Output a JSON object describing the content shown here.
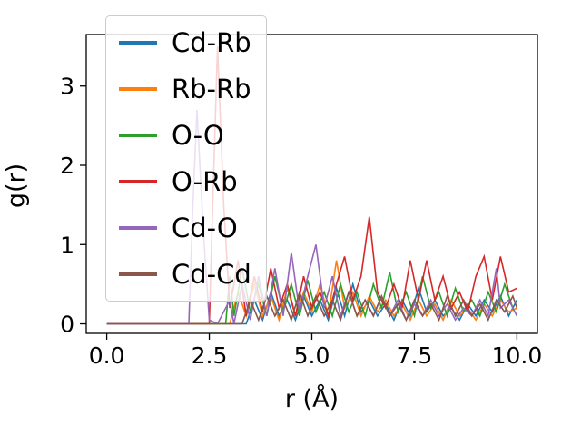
{
  "chart_data": {
    "type": "line",
    "title": "",
    "xlabel": "r (Å)",
    "ylabel": "g(r)",
    "xlim": [
      -0.5,
      10.5
    ],
    "ylim": [
      -0.12,
      3.65
    ],
    "grid": false,
    "legend_position": "upper left",
    "x_ticks": {
      "values": [
        0,
        2.5,
        5,
        7.5,
        10
      ],
      "labels": [
        "0.0",
        "2.5",
        "5.0",
        "7.5",
        "10.0"
      ]
    },
    "y_ticks": {
      "values": [
        0,
        1,
        2,
        3
      ],
      "labels": [
        "0",
        "1",
        "2",
        "3"
      ]
    },
    "series": [
      {
        "name": "Cd-Rb",
        "color": "#1f77b4",
        "points": [
          [
            0,
            0
          ],
          [
            3.4,
            0
          ],
          [
            3.6,
            0.3
          ],
          [
            3.8,
            0.05
          ],
          [
            4.0,
            0.4
          ],
          [
            4.2,
            0.1
          ],
          [
            4.4,
            0.3
          ],
          [
            4.6,
            0.05
          ],
          [
            4.8,
            0.35
          ],
          [
            5.0,
            0.1
          ],
          [
            5.2,
            0.3
          ],
          [
            5.4,
            0.05
          ],
          [
            5.6,
            0.45
          ],
          [
            5.8,
            0.1
          ],
          [
            6.0,
            0.5
          ],
          [
            6.2,
            0.15
          ],
          [
            6.4,
            0.3
          ],
          [
            6.6,
            0.1
          ],
          [
            6.8,
            0.25
          ],
          [
            7.0,
            0.05
          ],
          [
            7.2,
            0.3
          ],
          [
            7.4,
            0.1
          ],
          [
            7.6,
            0.45
          ],
          [
            7.8,
            0.15
          ],
          [
            8.0,
            0.3
          ],
          [
            8.2,
            0.1
          ],
          [
            8.4,
            0.2
          ],
          [
            8.6,
            0.05
          ],
          [
            8.8,
            0.25
          ],
          [
            9.0,
            0.1
          ],
          [
            9.2,
            0.3
          ],
          [
            9.4,
            0.15
          ],
          [
            9.6,
            0.35
          ],
          [
            9.8,
            0.1
          ],
          [
            10,
            0.3
          ]
        ]
      },
      {
        "name": "Rb-Rb",
        "color": "#ff7f0e",
        "points": [
          [
            0,
            0
          ],
          [
            3.0,
            0
          ],
          [
            3.2,
            0.4
          ],
          [
            3.4,
            0.1
          ],
          [
            3.6,
            0.5
          ],
          [
            3.8,
            0.1
          ],
          [
            4.0,
            0.35
          ],
          [
            4.2,
            0.05
          ],
          [
            4.4,
            0.45
          ],
          [
            4.6,
            0.1
          ],
          [
            4.8,
            0.4
          ],
          [
            5.0,
            0.15
          ],
          [
            5.2,
            0.5
          ],
          [
            5.4,
            0.1
          ],
          [
            5.6,
            0.8
          ],
          [
            5.8,
            0.2
          ],
          [
            6.0,
            0.4
          ],
          [
            6.2,
            0.1
          ],
          [
            6.4,
            0.35
          ],
          [
            6.6,
            0.15
          ],
          [
            6.8,
            0.3
          ],
          [
            7.0,
            0.1
          ],
          [
            7.2,
            0.25
          ],
          [
            7.4,
            0.05
          ],
          [
            7.6,
            0.3
          ],
          [
            7.8,
            0.1
          ],
          [
            8.0,
            0.25
          ],
          [
            8.2,
            0.05
          ],
          [
            8.4,
            0.3
          ],
          [
            8.6,
            0.1
          ],
          [
            8.8,
            0.2
          ],
          [
            9.0,
            0.05
          ],
          [
            9.2,
            0.25
          ],
          [
            9.4,
            0.1
          ],
          [
            9.6,
            0.3
          ],
          [
            9.8,
            0.15
          ],
          [
            10,
            0.2
          ]
        ]
      },
      {
        "name": "O-O",
        "color": "#2ca02c",
        "points": [
          [
            0,
            0
          ],
          [
            2.9,
            0
          ],
          [
            3.0,
            0.6
          ],
          [
            3.1,
            0.1
          ],
          [
            3.3,
            0.7
          ],
          [
            3.5,
            0.15
          ],
          [
            3.7,
            0.5
          ],
          [
            3.9,
            0.1
          ],
          [
            4.1,
            0.6
          ],
          [
            4.3,
            0.15
          ],
          [
            4.5,
            0.5
          ],
          [
            4.7,
            0.1
          ],
          [
            4.9,
            0.55
          ],
          [
            5.1,
            0.15
          ],
          [
            5.3,
            0.4
          ],
          [
            5.5,
            0.1
          ],
          [
            5.7,
            0.5
          ],
          [
            5.9,
            0.15
          ],
          [
            6.1,
            0.4
          ],
          [
            6.3,
            0.1
          ],
          [
            6.5,
            0.5
          ],
          [
            6.7,
            0.2
          ],
          [
            6.9,
            0.65
          ],
          [
            7.1,
            0.15
          ],
          [
            7.3,
            0.4
          ],
          [
            7.5,
            0.1
          ],
          [
            7.7,
            0.6
          ],
          [
            7.9,
            0.2
          ],
          [
            8.1,
            0.4
          ],
          [
            8.3,
            0.1
          ],
          [
            8.5,
            0.45
          ],
          [
            8.7,
            0.15
          ],
          [
            8.9,
            0.3
          ],
          [
            9.1,
            0.1
          ],
          [
            9.3,
            0.4
          ],
          [
            9.5,
            0.15
          ],
          [
            9.7,
            0.5
          ],
          [
            9.9,
            0.2
          ],
          [
            10,
            0.1
          ]
        ]
      },
      {
        "name": "O-Rb",
        "color": "#d62728",
        "points": [
          [
            0,
            0
          ],
          [
            2.5,
            0
          ],
          [
            2.6,
            1.8
          ],
          [
            2.7,
            3.5
          ],
          [
            2.85,
            1.5
          ],
          [
            3.0,
            0.2
          ],
          [
            3.2,
            0.8
          ],
          [
            3.4,
            0.1
          ],
          [
            3.6,
            0.6
          ],
          [
            3.8,
            0.15
          ],
          [
            4.0,
            0.7
          ],
          [
            4.2,
            0.2
          ],
          [
            4.4,
            0.5
          ],
          [
            4.6,
            0.1
          ],
          [
            4.8,
            0.6
          ],
          [
            5.0,
            0.2
          ],
          [
            5.2,
            0.4
          ],
          [
            5.4,
            0.1
          ],
          [
            5.6,
            0.5
          ],
          [
            5.8,
            0.85
          ],
          [
            6.0,
            0.3
          ],
          [
            6.2,
            0.6
          ],
          [
            6.4,
            1.35
          ],
          [
            6.6,
            0.4
          ],
          [
            6.8,
            0.2
          ],
          [
            7.0,
            0.5
          ],
          [
            7.2,
            0.2
          ],
          [
            7.4,
            0.8
          ],
          [
            7.6,
            0.3
          ],
          [
            7.8,
            0.8
          ],
          [
            8.0,
            0.3
          ],
          [
            8.2,
            0.6
          ],
          [
            8.4,
            0.2
          ],
          [
            8.6,
            0.4
          ],
          [
            8.8,
            0.15
          ],
          [
            9.0,
            0.6
          ],
          [
            9.2,
            0.85
          ],
          [
            9.4,
            0.3
          ],
          [
            9.6,
            0.85
          ],
          [
            9.8,
            0.4
          ],
          [
            10,
            0.45
          ]
        ]
      },
      {
        "name": "Cd-O",
        "color": "#9467bd",
        "points": [
          [
            0,
            0
          ],
          [
            2.0,
            0
          ],
          [
            2.1,
            1.5
          ],
          [
            2.2,
            2.7
          ],
          [
            2.35,
            1.2
          ],
          [
            2.5,
            0.05
          ],
          [
            2.7,
            0
          ],
          [
            3.0,
            0.3
          ],
          [
            3.1,
            0
          ],
          [
            3.3,
            0.5
          ],
          [
            3.5,
            0.05
          ],
          [
            3.7,
            0.6
          ],
          [
            3.9,
            0.1
          ],
          [
            4.1,
            0.7
          ],
          [
            4.3,
            0.1
          ],
          [
            4.5,
            0.9
          ],
          [
            4.7,
            0.15
          ],
          [
            4.9,
            0.6
          ],
          [
            5.1,
            1.0
          ],
          [
            5.3,
            0.2
          ],
          [
            5.5,
            0.6
          ],
          [
            5.7,
            0.1
          ],
          [
            5.9,
            0.4
          ],
          [
            6.1,
            0.1
          ],
          [
            6.3,
            0.3
          ],
          [
            6.5,
            0.1
          ],
          [
            6.7,
            0.35
          ],
          [
            6.9,
            0.1
          ],
          [
            7.1,
            0.3
          ],
          [
            7.3,
            0.05
          ],
          [
            7.5,
            0.25
          ],
          [
            7.7,
            0.1
          ],
          [
            7.9,
            0.3
          ],
          [
            8.1,
            0.1
          ],
          [
            8.3,
            0.25
          ],
          [
            8.5,
            0.05
          ],
          [
            8.7,
            0.2
          ],
          [
            8.9,
            0.1
          ],
          [
            9.1,
            0.3
          ],
          [
            9.3,
            0.1
          ],
          [
            9.5,
            0.7
          ],
          [
            9.6,
            0.2
          ],
          [
            9.8,
            0.3
          ],
          [
            10,
            0.1
          ]
        ]
      },
      {
        "name": "Cd-Cd",
        "color": "#8c564b",
        "points": [
          [
            0,
            0
          ],
          [
            3.3,
            0
          ],
          [
            3.5,
            0.3
          ],
          [
            3.7,
            0.05
          ],
          [
            3.9,
            0.35
          ],
          [
            4.1,
            0.1
          ],
          [
            4.3,
            0.3
          ],
          [
            4.5,
            0.05
          ],
          [
            4.7,
            0.4
          ],
          [
            4.9,
            0.1
          ],
          [
            5.1,
            0.35
          ],
          [
            5.3,
            0.1
          ],
          [
            5.5,
            0.3
          ],
          [
            5.7,
            0.05
          ],
          [
            5.9,
            0.4
          ],
          [
            6.1,
            0.1
          ],
          [
            6.3,
            0.3
          ],
          [
            6.5,
            0.1
          ],
          [
            6.7,
            0.35
          ],
          [
            6.9,
            0.1
          ],
          [
            7.1,
            0.25
          ],
          [
            7.3,
            0.05
          ],
          [
            7.5,
            0.3
          ],
          [
            7.7,
            0.1
          ],
          [
            7.9,
            0.25
          ],
          [
            8.1,
            0.05
          ],
          [
            8.3,
            0.35
          ],
          [
            8.5,
            0.1
          ],
          [
            8.7,
            0.3
          ],
          [
            8.9,
            0.1
          ],
          [
            9.1,
            0.25
          ],
          [
            9.3,
            0.05
          ],
          [
            9.5,
            0.3
          ],
          [
            9.7,
            0.15
          ],
          [
            9.9,
            0.35
          ],
          [
            10,
            0.2
          ]
        ]
      }
    ]
  }
}
